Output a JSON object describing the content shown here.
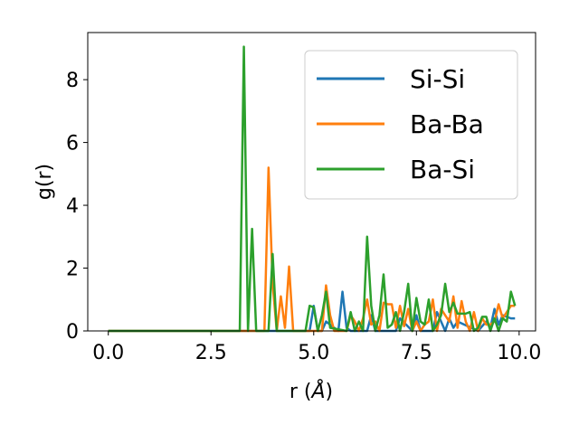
{
  "chart_data": {
    "type": "line",
    "xlabel": "r (",
    "xlabel_unit": "Å",
    "xlabel_close": ")",
    "ylabel": "g(r)",
    "xlim": [
      -0.5,
      10.4
    ],
    "ylim": [
      0,
      9.5
    ],
    "xticks": [
      0.0,
      2.5,
      5.0,
      7.5,
      10.0
    ],
    "xtick_labels": [
      "0.0",
      "2.5",
      "5.0",
      "7.5",
      "10.0"
    ],
    "yticks": [
      0,
      2,
      4,
      6,
      8
    ],
    "ytick_labels": [
      "0",
      "2",
      "4",
      "6",
      "8"
    ],
    "grid": false,
    "legend_position": "top-right",
    "series": [
      {
        "name": "Si-Si",
        "color": "#1f77b4",
        "x": [
          0,
          4.9,
          5.0,
          5.1,
          5.2,
          5.3,
          5.6,
          5.7,
          5.8,
          5.9,
          6.0,
          6.3,
          6.4,
          6.5,
          7.0,
          7.1,
          7.4,
          7.5,
          7.6,
          7.9,
          8.0,
          8.2,
          8.3,
          8.4,
          8.5,
          9.0,
          9.2,
          9.3,
          9.4,
          9.5,
          9.6,
          9.8,
          9.9
        ],
        "y": [
          0,
          0,
          0.8,
          0,
          0,
          0.3,
          0,
          1.25,
          0.1,
          0,
          0,
          0,
          0.5,
          0,
          0,
          0.4,
          0,
          0.5,
          0,
          0,
          0.6,
          0,
          0.4,
          0.1,
          0.3,
          0,
          0.3,
          0.1,
          0.7,
          0.2,
          0.5,
          0.4,
          0.4
        ]
      },
      {
        "name": "Ba-Ba",
        "color": "#ff7f0e",
        "x": [
          0,
          3.8,
          3.9,
          4.0,
          4.1,
          4.2,
          4.3,
          4.4,
          4.5,
          5.2,
          5.3,
          5.4,
          5.5,
          5.8,
          5.9,
          6.0,
          6.1,
          6.2,
          6.3,
          6.4,
          6.5,
          6.6,
          6.7,
          6.8,
          6.9,
          7.0,
          7.1,
          7.2,
          7.3,
          7.4,
          7.5,
          7.6,
          7.7,
          7.8,
          7.9,
          8.0,
          8.1,
          8.2,
          8.3,
          8.4,
          8.5,
          8.6,
          8.7,
          8.8,
          8.9,
          9.0,
          9.1,
          9.2,
          9.3,
          9.4,
          9.5,
          9.6,
          9.7,
          9.8,
          9.9
        ],
        "y": [
          0,
          0,
          5.2,
          1.5,
          0,
          1.1,
          0.1,
          2.05,
          0,
          0,
          1.45,
          0.5,
          0,
          0,
          0.5,
          0.3,
          0,
          0.4,
          1.0,
          0.2,
          0.3,
          0,
          0.9,
          0.85,
          0.85,
          0.1,
          0.8,
          0.15,
          0.7,
          0,
          0.3,
          0,
          0.2,
          0.3,
          1.0,
          0,
          0.7,
          0.5,
          0.3,
          1.1,
          0.1,
          0.95,
          0.3,
          0,
          0.6,
          0,
          0.4,
          0.2,
          0.2,
          0.3,
          0.85,
          0.4,
          0.6,
          0.8,
          0.8
        ]
      },
      {
        "name": "Ba-Si",
        "color": "#2ca02c",
        "x": [
          0,
          3.2,
          3.3,
          3.4,
          3.5,
          3.6,
          3.9,
          4.0,
          4.1,
          4.8,
          4.9,
          5.0,
          5.1,
          5.2,
          5.3,
          5.4,
          5.8,
          5.9,
          6.0,
          6.1,
          6.2,
          6.3,
          6.4,
          6.5,
          6.6,
          6.7,
          6.8,
          6.9,
          7.0,
          7.1,
          7.2,
          7.3,
          7.4,
          7.5,
          7.6,
          7.7,
          7.8,
          7.9,
          8.0,
          8.1,
          8.2,
          8.3,
          8.4,
          8.5,
          8.6,
          8.7,
          8.8,
          8.9,
          9.0,
          9.1,
          9.2,
          9.3,
          9.4,
          9.5,
          9.6,
          9.7,
          9.8,
          9.9
        ],
        "y": [
          0,
          0,
          9.05,
          0,
          3.25,
          0,
          0,
          2.45,
          0,
          0,
          0.8,
          0.75,
          0,
          0.5,
          1.25,
          0.1,
          0,
          0.6,
          0,
          0.3,
          0,
          3.0,
          0.8,
          0,
          0.5,
          1.8,
          0.1,
          0.2,
          0.6,
          0,
          0.6,
          1.5,
          0,
          1.05,
          0.3,
          0.2,
          1.0,
          0,
          0.2,
          0.5,
          1.5,
          0.6,
          0.9,
          0.55,
          0.55,
          0.55,
          0.6,
          0,
          0.1,
          0.45,
          0.45,
          0,
          0.4,
          0,
          0.4,
          0.3,
          1.25,
          0.8
        ]
      }
    ]
  }
}
